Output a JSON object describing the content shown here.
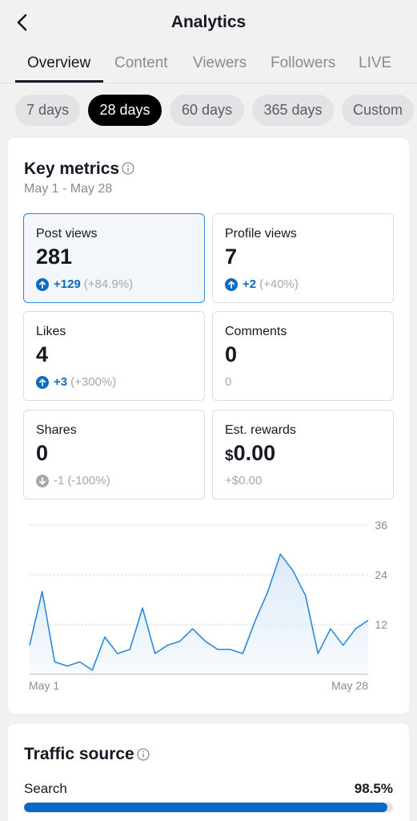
{
  "header": {
    "title": "Analytics",
    "tabs": [
      {
        "label": "Overview",
        "active": true
      },
      {
        "label": "Content",
        "active": false
      },
      {
        "label": "Viewers",
        "active": false
      },
      {
        "label": "Followers",
        "active": false
      },
      {
        "label": "LIVE",
        "active": false
      }
    ]
  },
  "ranges": [
    {
      "label": "7 days",
      "active": false
    },
    {
      "label": "28 days",
      "active": true
    },
    {
      "label": "60 days",
      "active": false
    },
    {
      "label": "365 days",
      "active": false
    },
    {
      "label": "Custom",
      "active": false
    }
  ],
  "key_metrics": {
    "title": "Key metrics",
    "date_range": "May 1 - May 28",
    "metrics": [
      {
        "label": "Post views",
        "value": "281",
        "delta": "+129",
        "percent": "(+84.9%)",
        "trend": "up",
        "selected": true
      },
      {
        "label": "Profile views",
        "value": "7",
        "delta": "+2",
        "percent": "(+40%)",
        "trend": "up",
        "selected": false
      },
      {
        "label": "Likes",
        "value": "4",
        "delta": "+3",
        "percent": "(+300%)",
        "trend": "up",
        "selected": false
      },
      {
        "label": "Comments",
        "value": "0",
        "delta": "0",
        "percent": "",
        "trend": "none",
        "selected": false
      },
      {
        "label": "Shares",
        "value": "0",
        "delta": "-1",
        "percent": "(-100%)",
        "trend": "down",
        "selected": false
      },
      {
        "label": "Est. rewards",
        "currency": "$",
        "value": "0.00",
        "delta": "+$0.00",
        "percent": "",
        "trend": "none",
        "selected": false
      }
    ]
  },
  "chart_data": {
    "type": "area",
    "x_start_label": "May 1",
    "x_end_label": "May 28",
    "ylim": [
      0,
      36
    ],
    "y_ticks": [
      "12",
      "24",
      "36"
    ],
    "grid": true,
    "series": [
      {
        "values": [
          7,
          20,
          3,
          2,
          3,
          1,
          9,
          5,
          6,
          16,
          5,
          7,
          8,
          11,
          8,
          6,
          6,
          5,
          13,
          20,
          29,
          25,
          19,
          5,
          11,
          7,
          11,
          13
        ]
      }
    ]
  },
  "traffic_source": {
    "title": "Traffic source",
    "rows": [
      {
        "label": "Search",
        "value": "98.5%",
        "fraction": 0.985
      }
    ]
  },
  "colors": {
    "accent": "#0b6bc4",
    "line": "#2c88d9",
    "fill": "#dcebf8"
  }
}
